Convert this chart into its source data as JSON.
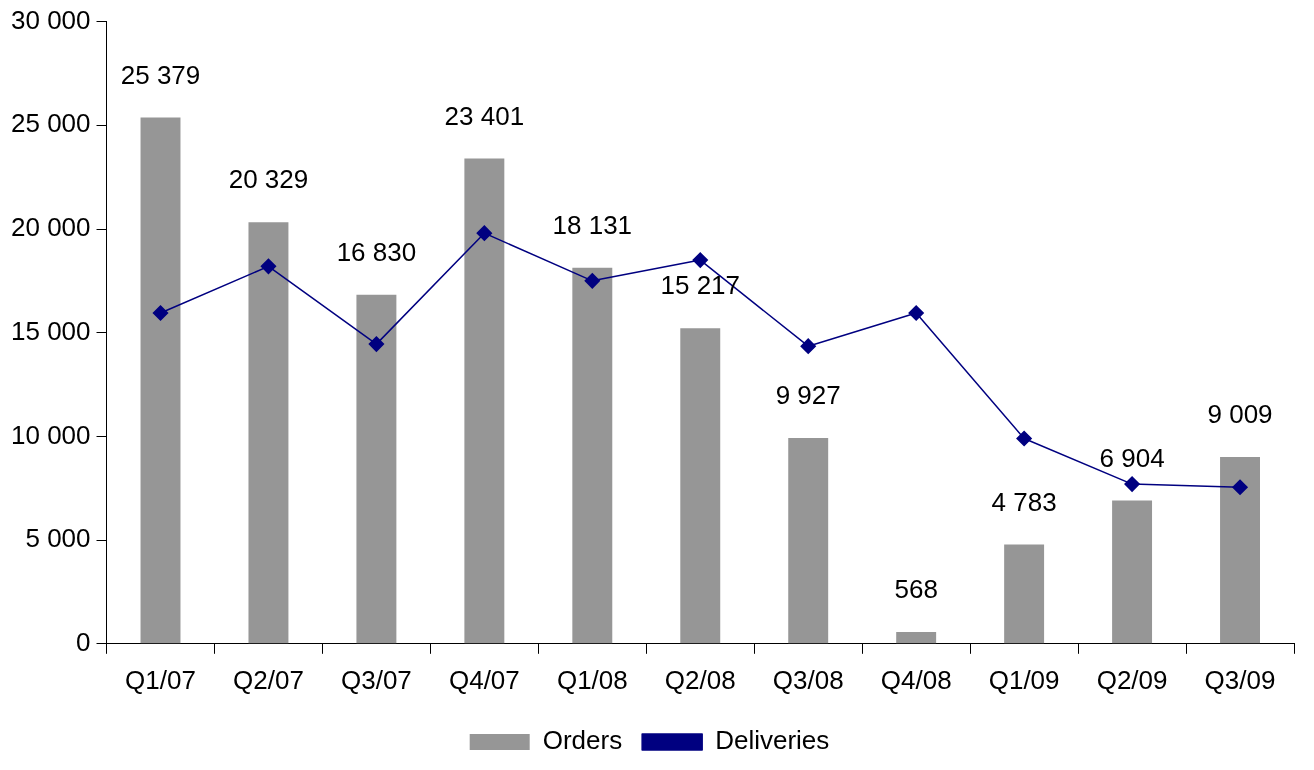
{
  "chart_data": {
    "type": "bar",
    "categories": [
      "Q1/07",
      "Q2/07",
      "Q3/07",
      "Q4/07",
      "Q1/08",
      "Q2/08",
      "Q3/08",
      "Q4/08",
      "Q1/09",
      "Q2/09",
      "Q3/09"
    ],
    "series": [
      {
        "name": "Orders",
        "color": "#969696",
        "values": [
          25379,
          20329,
          16830,
          23401,
          18131,
          15217,
          9927,
          568,
          4783,
          6904,
          9009
        ],
        "value_labels": [
          "25 379",
          "20 329",
          "16 830",
          "23 401",
          "18 131",
          "15 217",
          "9 927",
          "568",
          "4 783",
          "6 904",
          "9 009"
        ]
      },
      {
        "name": "Deliveries",
        "type": "line",
        "color": "#000080",
        "marker": "diamond",
        "values": [
          15950,
          18200,
          14450,
          19800,
          17500,
          18500,
          14350,
          15950,
          9900,
          7700,
          7550
        ]
      }
    ],
    "ylim": [
      0,
      30000
    ],
    "yticks": [
      {
        "value": 0,
        "label": "0"
      },
      {
        "value": 5000,
        "label": "5 000"
      },
      {
        "value": 10000,
        "label": "10 000"
      },
      {
        "value": 15000,
        "label": "15 000"
      },
      {
        "value": 20000,
        "label": "20 000"
      },
      {
        "value": 25000,
        "label": "25 000"
      },
      {
        "value": 30000,
        "label": "30 000"
      }
    ],
    "grid": false,
    "legend": "bottom"
  }
}
